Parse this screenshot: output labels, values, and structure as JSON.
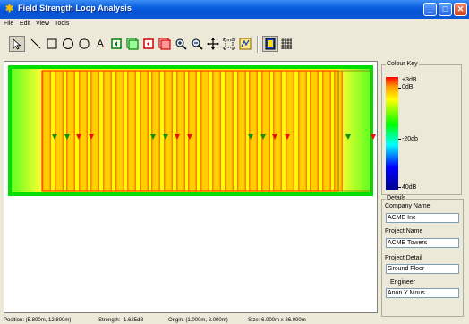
{
  "window": {
    "title": "Field Strength Loop Analysis",
    "buttons": {
      "minimize": "_",
      "maximize": "□",
      "close": "✕"
    }
  },
  "menu": {
    "items": [
      "File",
      "Edit",
      "View",
      "Tools"
    ]
  },
  "toolbar": {
    "tools": [
      {
        "name": "select-tool",
        "icon": "arrow-pointer-icon"
      },
      {
        "name": "line-tool",
        "icon": "line-icon"
      },
      {
        "name": "rectangle-tool",
        "icon": "rectangle-icon"
      },
      {
        "name": "circle-tool",
        "icon": "circle-icon"
      },
      {
        "name": "rounded-rect-tool",
        "icon": "rounded-rect-icon"
      },
      {
        "name": "text-tool",
        "icon": "text-icon",
        "label": "A"
      },
      {
        "name": "loop-tool-1",
        "icon": "loop-green-icon"
      },
      {
        "name": "loop-tool-2",
        "icon": "loop-green-double-icon"
      },
      {
        "name": "loop-tool-3",
        "icon": "loop-red-icon"
      },
      {
        "name": "loop-tool-4",
        "icon": "loop-red-double-icon"
      },
      {
        "name": "zoom-in-tool",
        "icon": "zoom-in-icon"
      },
      {
        "name": "zoom-out-tool",
        "icon": "zoom-out-icon"
      },
      {
        "name": "pan-tool",
        "icon": "move-icon"
      },
      {
        "name": "fit-tool",
        "icon": "fit-extents-icon"
      },
      {
        "name": "analyse-tool",
        "icon": "analyse-icon"
      },
      {
        "name": "view-toggle",
        "icon": "colour-view-icon"
      },
      {
        "name": "grid-toggle",
        "icon": "grid-icon"
      }
    ]
  },
  "colour_key": {
    "title": "Colour Key",
    "labels": [
      "+3dB",
      "0dB",
      "-20db",
      "40dB"
    ],
    "colors": [
      "#ff0000",
      "#ffa000",
      "#ffff00",
      "#00ff00",
      "#00ffff",
      "#0000ff",
      "#000090"
    ]
  },
  "details": {
    "title": "Details",
    "company_label": "Company Name",
    "company_value": "ACME Inc",
    "project_label": "Project Name",
    "project_value": "ACME Towers",
    "detail_label": "Project Detail",
    "detail_value": "Ground Floor",
    "engineer_label": "Engineer",
    "engineer_value": "Anon Y Mous"
  },
  "status": {
    "position": "Position: (5.800m, 12.800m)",
    "strength": "Strength: -1.625dB",
    "origin": "Origin: (1.000m, 2.000m)",
    "size": "Size: 6.000m x 26.000m"
  },
  "plot": {
    "background": "#00dd00",
    "field": "#ffff00",
    "hot": "#ff2000",
    "marker_green": "#1a8a1a",
    "marker_red": "#ee1010"
  }
}
